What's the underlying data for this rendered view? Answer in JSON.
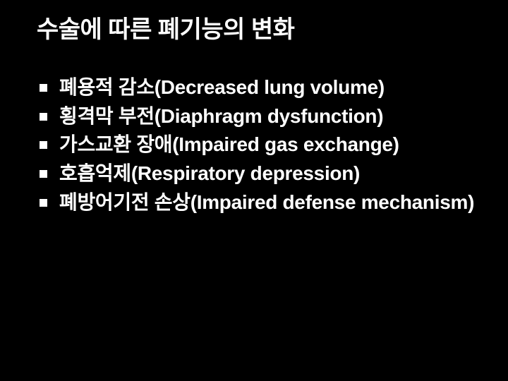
{
  "slide": {
    "background_color": "#000000",
    "text_color": "#ffffff",
    "title": "수술에 따른 폐기능의 변화",
    "title_fontsize": 34,
    "bullet_fontsize": 28,
    "bullet_marker": "square",
    "bullet_marker_color": "#ffffff",
    "items": [
      {
        "text": "폐용적 감소(Decreased lung volume)"
      },
      {
        "text": "횡격막 부전(Diaphragm dysfunction)"
      },
      {
        "text": "가스교환 장애(Impaired gas exchange)"
      },
      {
        "text": "호흡억제(Respiratory depression)"
      },
      {
        "text": "폐방어기전 손상(Impaired defense mechanism)"
      }
    ]
  }
}
